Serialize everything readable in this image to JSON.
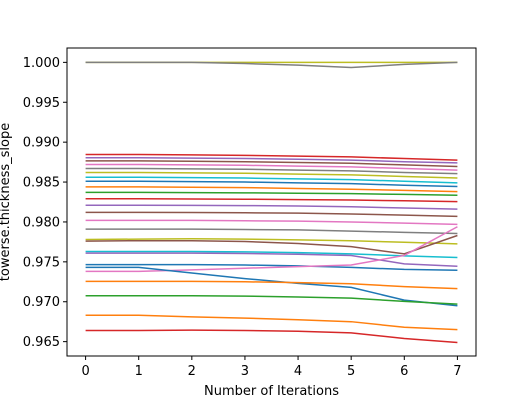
{
  "chart_data": {
    "type": "line",
    "xlabel": "Number of Iterations",
    "ylabel": "towerse.thickness_slope",
    "xlim": [
      -0.35,
      7.35
    ],
    "ylim": [
      0.9632,
      1.0018
    ],
    "xticks": [
      0,
      1,
      2,
      3,
      4,
      5,
      6,
      7
    ],
    "yticks": [
      0.965,
      0.97,
      0.975,
      0.98,
      0.985,
      0.99,
      0.995,
      1.0
    ],
    "ytick_labels": [
      "0.965",
      "0.970",
      "0.975",
      "0.980",
      "0.985",
      "0.990",
      "0.995",
      "1.000"
    ],
    "grid": false,
    "legend": "none",
    "x": [
      0,
      1,
      2,
      3,
      4,
      5,
      6,
      7
    ],
    "series": [
      {
        "color": "#bcbd22",
        "values": [
          1.0,
          1.0,
          1.0,
          1.0,
          1.0,
          1.0,
          1.0,
          1.0
        ]
      },
      {
        "color": "#7f7f7f",
        "values": [
          1.0,
          1.0,
          1.0,
          0.99985,
          0.99965,
          0.99935,
          0.99975,
          1.0
        ]
      },
      {
        "color": "#d62728",
        "values": [
          0.98845,
          0.98845,
          0.9884,
          0.98835,
          0.98825,
          0.98815,
          0.98795,
          0.98775
        ]
      },
      {
        "color": "#9467bd",
        "values": [
          0.98805,
          0.98805,
          0.988,
          0.98795,
          0.98785,
          0.98775,
          0.98755,
          0.9874
        ]
      },
      {
        "color": "#8c564b",
        "values": [
          0.98765,
          0.98765,
          0.9876,
          0.98755,
          0.98745,
          0.98735,
          0.98715,
          0.98695
        ]
      },
      {
        "color": "#e377c2",
        "values": [
          0.9872,
          0.9872,
          0.98715,
          0.9871,
          0.987,
          0.9869,
          0.9867,
          0.9865
        ]
      },
      {
        "color": "#7f7f7f",
        "values": [
          0.9867,
          0.9867,
          0.98665,
          0.9866,
          0.9865,
          0.9864,
          0.9862,
          0.98605
        ]
      },
      {
        "color": "#bcbd22",
        "values": [
          0.9862,
          0.9862,
          0.98615,
          0.9861,
          0.986,
          0.9859,
          0.9857,
          0.9855
        ]
      },
      {
        "color": "#17becf",
        "values": [
          0.9856,
          0.9856,
          0.98555,
          0.9855,
          0.9854,
          0.9853,
          0.9851,
          0.9849
        ]
      },
      {
        "color": "#1f77b4",
        "values": [
          0.9851,
          0.9851,
          0.98505,
          0.985,
          0.9849,
          0.9848,
          0.9846,
          0.98445
        ]
      },
      {
        "color": "#ff7f0e",
        "values": [
          0.9844,
          0.9844,
          0.98435,
          0.9843,
          0.9842,
          0.9841,
          0.98395,
          0.9838
        ]
      },
      {
        "color": "#2ca02c",
        "values": [
          0.9837,
          0.9837,
          0.98368,
          0.98365,
          0.9836,
          0.98355,
          0.98345,
          0.98335
        ]
      },
      {
        "color": "#d62728",
        "values": [
          0.9829,
          0.9829,
          0.98288,
          0.98285,
          0.9828,
          0.98275,
          0.98265,
          0.98255
        ]
      },
      {
        "color": "#9467bd",
        "values": [
          0.9821,
          0.9821,
          0.98208,
          0.98205,
          0.982,
          0.9819,
          0.98175,
          0.9816
        ]
      },
      {
        "color": "#8c564b",
        "values": [
          0.9812,
          0.9812,
          0.98118,
          0.98115,
          0.9811,
          0.981,
          0.98085,
          0.9807
        ]
      },
      {
        "color": "#e377c2",
        "values": [
          0.9802,
          0.9802,
          0.9802,
          0.98015,
          0.9801,
          0.98,
          0.97985,
          0.9797
        ]
      },
      {
        "color": "#7f7f7f",
        "values": [
          0.9791,
          0.9791,
          0.9791,
          0.97905,
          0.979,
          0.97885,
          0.9787,
          0.97855
        ]
      },
      {
        "color": "#bcbd22",
        "values": [
          0.9778,
          0.97785,
          0.9779,
          0.97785,
          0.97775,
          0.97765,
          0.97745,
          0.97725
        ]
      },
      {
        "color": "#8c564b",
        "values": [
          0.9776,
          0.97765,
          0.97765,
          0.97755,
          0.9773,
          0.9769,
          0.976,
          0.9783
        ]
      },
      {
        "color": "#17becf",
        "values": [
          0.9763,
          0.9763,
          0.9763,
          0.97625,
          0.97615,
          0.976,
          0.97575,
          0.97555
        ]
      },
      {
        "color": "#9467bd",
        "values": [
          0.9761,
          0.9761,
          0.9761,
          0.97605,
          0.97595,
          0.9758,
          0.97475,
          0.97445
        ]
      },
      {
        "color": "#1f77b4",
        "values": [
          0.97465,
          0.97465,
          0.97465,
          0.9746,
          0.9745,
          0.9743,
          0.97405,
          0.97395
        ]
      },
      {
        "color": "#e377c2",
        "values": [
          0.9738,
          0.9738,
          0.974,
          0.9742,
          0.9744,
          0.9746,
          0.9758,
          0.9794
        ]
      },
      {
        "color": "#1f77b4",
        "values": [
          0.9743,
          0.9743,
          0.9736,
          0.9729,
          0.9723,
          0.9718,
          0.9702,
          0.9695
        ]
      },
      {
        "color": "#ff7f0e",
        "values": [
          0.97255,
          0.97255,
          0.97255,
          0.9725,
          0.9724,
          0.97225,
          0.9719,
          0.97165
        ]
      },
      {
        "color": "#2ca02c",
        "values": [
          0.97075,
          0.97075,
          0.97075,
          0.9707,
          0.9706,
          0.97045,
          0.97005,
          0.9697
        ]
      },
      {
        "color": "#ff7f0e",
        "values": [
          0.9683,
          0.9683,
          0.9681,
          0.96795,
          0.96775,
          0.9675,
          0.9668,
          0.9665
        ]
      },
      {
        "color": "#d62728",
        "values": [
          0.9664,
          0.9664,
          0.96645,
          0.9664,
          0.9663,
          0.9661,
          0.9654,
          0.9649
        ]
      }
    ]
  }
}
